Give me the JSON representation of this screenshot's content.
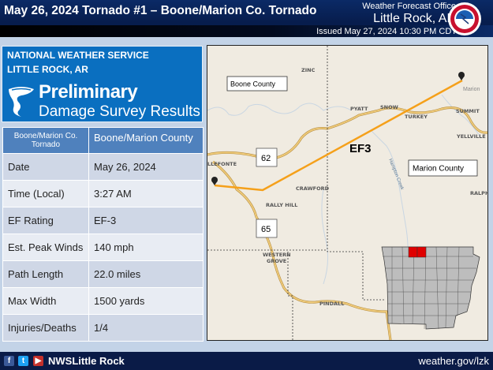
{
  "header": {
    "title": "May 26, 2024  Tornado #1 – Boone/Marion Co.  Tornado",
    "office_label": "Weather Forecast Office",
    "office_city": "Little Rock, AR",
    "issued": "Issued May 27, 2024 10:30 PM CDT",
    "logo": "noaa-nws-logo"
  },
  "panel": {
    "line1": "NATIONAL WEATHER SERVICE",
    "line2": "LITTLE ROCK, AR",
    "heading": "Preliminary",
    "subheading": "Damage Survey Results",
    "icon": "tornado-icon"
  },
  "table": {
    "header": [
      "Boone/Marion Co. Tornado",
      "Boone/Marion County"
    ],
    "rows": [
      [
        "Date",
        "May 26, 2024"
      ],
      [
        "Time (Local)",
        "3:27 AM"
      ],
      [
        "EF Rating",
        "EF-3"
      ],
      [
        "Est. Peak Winds",
        "140 mph"
      ],
      [
        "Path Length",
        "22.0 miles"
      ],
      [
        "Max Width",
        "1500 yards"
      ],
      [
        "Injuries/Deaths",
        "1/4"
      ]
    ]
  },
  "map": {
    "rating_label": "EF3",
    "county_boxes": [
      "Boone County",
      "Marion County"
    ],
    "places": [
      "ZINC",
      "PYATT",
      "SNOW",
      "TURKEY",
      "SUMMIT",
      "YELLVILLE",
      "Marion",
      "LLEFONTE",
      "CRAWFORD",
      "RALLY HILL",
      "RALPH",
      "WESTERN",
      "GROVE",
      "PINDALL"
    ],
    "creek": "Hampton Creek",
    "highways": [
      "62",
      "65"
    ],
    "track_color": "#f5a01a",
    "highlight_color": "#e00000"
  },
  "footer": {
    "handle": "NWSLittle Rock",
    "website": "weather.gov/lzk",
    "social": [
      "facebook-icon",
      "twitter-icon",
      "youtube-icon"
    ]
  }
}
